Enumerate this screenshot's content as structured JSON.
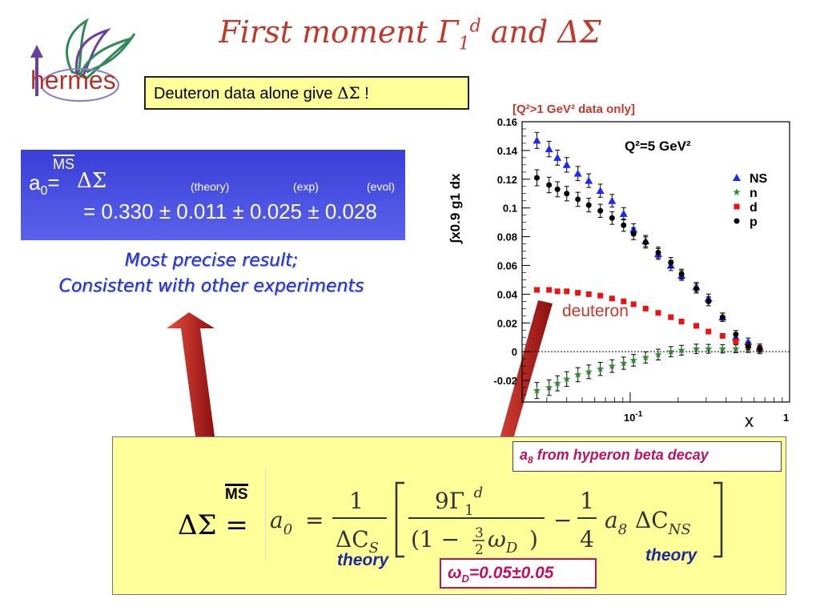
{
  "title": {
    "prefix": "First moment ",
    "gamma": "Γ",
    "sub": "1",
    "sup": "d",
    "suffix": " and ΔΣ"
  },
  "logo": {
    "text": "hermes",
    "icon": "wings-arrow-logo"
  },
  "deuteron_box": {
    "text": "Deuteron data alone give ",
    "symbol": "ΔΣ",
    "end": " !"
  },
  "result_box": {
    "a0": "a",
    "a0_sub": "0",
    "eq": "=",
    "ms": "MS",
    "delta_sigma": "ΔΣ",
    "col_theory": "(theory)",
    "col_exp": "(exp)",
    "col_evol": "(evol)",
    "value": "= 0.330 ± 0.011 ± 0.025 ± 0.028"
  },
  "conclusion": {
    "line1": "Most precise result;",
    "line2": "Consistent with other experiments"
  },
  "q2_note": "[Q²>1 GeV² data only]",
  "formula": {
    "lhs": "ΔΣ",
    "ms": "MS",
    "eq": "=",
    "a0": "a",
    "a0_sub": "0",
    "equals": "=",
    "one": "1",
    "delta_c_s": "ΔC",
    "s_sub": "S",
    "nine_gamma": "9Γ",
    "gamma_sub": "1",
    "gamma_sup": "d",
    "denominator": "(1 − ",
    "three": "3",
    "two": "2",
    "omega": "ω",
    "omega_sub": "D",
    "close": ")",
    "minus": "−",
    "four": "4",
    "a8": "a",
    "a8_sub": "8",
    "delta_c_ns": "ΔC",
    "ns_sub": "NS",
    "theory1": "theory",
    "theory2": "theory"
  },
  "a8_note": {
    "a": "a",
    "sub": "8",
    "text": " from hyperon beta decay"
  },
  "omega_note": {
    "omega": "ω",
    "sub": "D",
    "text": "=0.05±0.05"
  },
  "deuteron_label": "deuteron",
  "chart_data": {
    "type": "scatter",
    "title": "Q²=5 GeV²",
    "xlabel": "x",
    "ylabel": "∫x0.9 g1 dx",
    "xscale": "log",
    "xlim": [
      0.021,
      1.0
    ],
    "ylim": [
      -0.035,
      0.16
    ],
    "y_ticks": [
      "0.16",
      "0.14",
      "0.12",
      "0.1",
      "0.08",
      "0.06",
      "0.04",
      "0.02",
      "0",
      "-0.02"
    ],
    "x_tick_labels": [
      {
        "value": 0.1,
        "label": "10",
        "exp": "-1"
      },
      {
        "value": 1.0,
        "label": "1",
        "exp": ""
      }
    ],
    "legend_placement": "right",
    "x": [
      0.026,
      0.031,
      0.035,
      0.04,
      0.047,
      0.055,
      0.065,
      0.077,
      0.091,
      0.105,
      0.125,
      0.15,
      0.18,
      0.21,
      0.26,
      0.31,
      0.38,
      0.46,
      0.55,
      0.65
    ],
    "series": [
      {
        "name": "NS",
        "color": "#1a2aff",
        "marker": "triangle",
        "errors": true,
        "values": [
          0.147,
          0.141,
          0.135,
          0.13,
          0.124,
          0.119,
          0.112,
          0.105,
          0.096,
          0.085,
          0.077,
          0.068,
          0.06,
          0.053,
          0.045,
          0.037,
          0.024,
          0.01,
          0.007,
          0.003
        ]
      },
      {
        "name": "n",
        "color": "#2e8b2e",
        "marker": "star",
        "errors": true,
        "values": [
          -0.027,
          -0.025,
          -0.022,
          -0.019,
          -0.016,
          -0.014,
          -0.012,
          -0.01,
          -0.008,
          -0.006,
          -0.004,
          -0.002,
          0.0,
          0.001,
          0.002,
          0.002,
          0.002,
          0.002,
          0.002,
          0.001
        ]
      },
      {
        "name": "d",
        "color": "#ee1111",
        "marker": "square",
        "errors": false,
        "values": [
          0.043,
          0.043,
          0.042,
          0.042,
          0.041,
          0.04,
          0.039,
          0.037,
          0.035,
          0.033,
          0.03,
          0.027,
          0.024,
          0.021,
          0.018,
          0.014,
          0.011,
          0.007,
          0.004,
          0.002
        ]
      },
      {
        "name": "p",
        "color": "#000000",
        "marker": "circle",
        "errors": true,
        "values": [
          0.121,
          0.116,
          0.113,
          0.11,
          0.106,
          0.102,
          0.098,
          0.093,
          0.088,
          0.082,
          0.076,
          0.069,
          0.062,
          0.054,
          0.044,
          0.035,
          0.024,
          0.012,
          0.004,
          0.002
        ]
      }
    ]
  }
}
